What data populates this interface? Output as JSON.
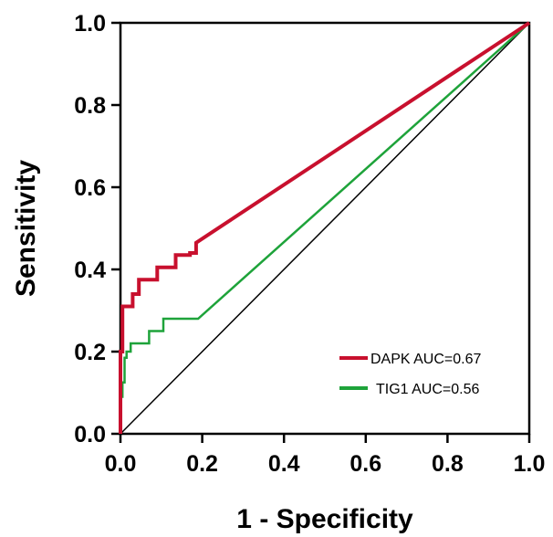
{
  "chart_data": {
    "type": "line",
    "title": "",
    "xlabel": "1 - Specificity",
    "ylabel": "Sensitivity",
    "xlim": [
      0,
      1
    ],
    "ylim": [
      0,
      1
    ],
    "x_ticks": [
      "0.0",
      "0.2",
      "0.4",
      "0.6",
      "0.8",
      "1.0"
    ],
    "y_ticks": [
      "0.0",
      "0.2",
      "0.4",
      "0.6",
      "0.8",
      "1.0"
    ],
    "grid": false,
    "legend_position": "bottom-right",
    "reference_line": {
      "x": [
        0,
        1
      ],
      "y": [
        0,
        1
      ],
      "color": "#000000"
    },
    "series": [
      {
        "name": "DAPK AUC=0.67",
        "color": "#c8102e",
        "x": [
          0,
          0,
          0.005,
          0.005,
          0.03,
          0.03,
          0.045,
          0.045,
          0.065,
          0.065,
          0.09,
          0.09,
          0.135,
          0.135,
          0.17,
          0.17,
          0.185,
          0.185,
          1
        ],
        "y": [
          0,
          0.2,
          0.2,
          0.31,
          0.31,
          0.34,
          0.34,
          0.375,
          0.375,
          0.375,
          0.375,
          0.405,
          0.405,
          0.435,
          0.435,
          0.44,
          0.44,
          0.465,
          1
        ]
      },
      {
        "name": "TIG1 AUC=0.56",
        "color": "#1ea33a",
        "x": [
          0,
          0,
          0.005,
          0.005,
          0.01,
          0.01,
          0.015,
          0.015,
          0.025,
          0.025,
          0.07,
          0.07,
          0.105,
          0.105,
          0.12,
          0.12,
          0.19,
          1
        ],
        "y": [
          0,
          0.09,
          0.09,
          0.125,
          0.125,
          0.185,
          0.185,
          0.2,
          0.2,
          0.22,
          0.22,
          0.25,
          0.25,
          0.28,
          0.28,
          0.28,
          0.28,
          1
        ]
      }
    ]
  }
}
